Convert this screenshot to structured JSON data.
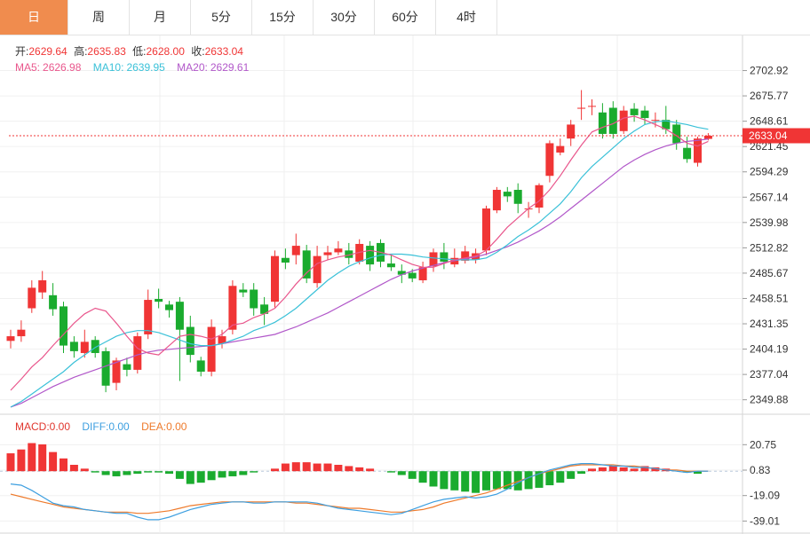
{
  "tabs": [
    "日",
    "周",
    "月",
    "5分",
    "15分",
    "30分",
    "60分",
    "4时"
  ],
  "active_tab": 0,
  "info": {
    "open_label": "开:",
    "open": "2629.64",
    "high_label": "高:",
    "high": "2635.83",
    "low_label": "低:",
    "low": "2628.00",
    "close_label": "收:",
    "close": "2633.04"
  },
  "ma_legend": {
    "ma5_label": "MA5:",
    "ma5": "2626.98",
    "ma10_label": "MA10:",
    "ma10": "2639.95",
    "ma20_label": "MA20:",
    "ma20": "2629.61"
  },
  "macd_legend": {
    "macd_label": "MACD:",
    "macd": "0.00",
    "diff_label": "DIFF:",
    "diff": "0.00",
    "dea_label": "DEA:",
    "dea": "0.00"
  },
  "colors": {
    "up": "#f03535",
    "down": "#1aab2e",
    "ma5": "#e9568c",
    "ma10": "#3ac1d8",
    "ma20": "#b157c9",
    "diff": "#3d9fe0",
    "dea": "#ee7a2b",
    "tab_active": "#f08c4e"
  },
  "chart_data": {
    "type": "candlestick",
    "price_axis": {
      "ticks": [
        2702.92,
        2675.77,
        2648.61,
        2621.45,
        2594.29,
        2567.14,
        2539.98,
        2512.82,
        2485.67,
        2458.51,
        2431.35,
        2404.19,
        2377.04,
        2349.88
      ],
      "current_price": "2633.04",
      "range": [
        2341,
        2712
      ]
    },
    "macd_axis": {
      "ticks": [
        20.75,
        0.83,
        -19.09,
        -39.01
      ],
      "range": [
        -45,
        30
      ]
    },
    "candles": [
      [
        2413,
        2418,
        2405,
        2425
      ],
      [
        2418,
        2425,
        2412,
        2435
      ],
      [
        2448,
        2470,
        2443,
        2478
      ],
      [
        2465,
        2478,
        2458,
        2488
      ],
      [
        2462,
        2447,
        2440,
        2475
      ],
      [
        2450,
        2408,
        2400,
        2455
      ],
      [
        2412,
        2402,
        2395,
        2418
      ],
      [
        2400,
        2412,
        2395,
        2425
      ],
      [
        2414,
        2400,
        2395,
        2418
      ],
      [
        2402,
        2365,
        2358,
        2406
      ],
      [
        2368,
        2392,
        2360,
        2395
      ],
      [
        2388,
        2382,
        2375,
        2395
      ],
      [
        2382,
        2418,
        2378,
        2422
      ],
      [
        2420,
        2457,
        2415,
        2468
      ],
      [
        2458,
        2455,
        2448,
        2469
      ],
      [
        2452,
        2446,
        2438,
        2456
      ],
      [
        2455,
        2425,
        2370,
        2460
      ],
      [
        2428,
        2398,
        2390,
        2440
      ],
      [
        2392,
        2380,
        2375,
        2396
      ],
      [
        2380,
        2428,
        2375,
        2436
      ],
      [
        2410,
        2418,
        2405,
        2425
      ],
      [
        2425,
        2472,
        2420,
        2478
      ],
      [
        2468,
        2465,
        2460,
        2475
      ],
      [
        2468,
        2448,
        2440,
        2475
      ],
      [
        2452,
        2442,
        2430,
        2460
      ],
      [
        2455,
        2504,
        2449,
        2510
      ],
      [
        2502,
        2497,
        2490,
        2512
      ],
      [
        2505,
        2515,
        2495,
        2528
      ],
      [
        2510,
        2480,
        2475,
        2516
      ],
      [
        2475,
        2504,
        2470,
        2515
      ],
      [
        2505,
        2508,
        2500,
        2515
      ],
      [
        2508,
        2512,
        2505,
        2520
      ],
      [
        2510,
        2502,
        2495,
        2518
      ],
      [
        2498,
        2517,
        2495,
        2522
      ],
      [
        2515,
        2495,
        2488,
        2520
      ],
      [
        2518,
        2498,
        2492,
        2522
      ],
      [
        2496,
        2492,
        2488,
        2505
      ],
      [
        2488,
        2484,
        2475,
        2495
      ],
      [
        2486,
        2480,
        2476,
        2490
      ],
      [
        2478,
        2492,
        2475,
        2498
      ],
      [
        2493,
        2508,
        2487,
        2512
      ],
      [
        2508,
        2498,
        2490,
        2518
      ],
      [
        2495,
        2502,
        2492,
        2512
      ],
      [
        2499,
        2509,
        2496,
        2515
      ],
      [
        2500,
        2507,
        2496,
        2512
      ],
      [
        2510,
        2555,
        2505,
        2558
      ],
      [
        2553,
        2575,
        2550,
        2578
      ],
      [
        2573,
        2568,
        2562,
        2578
      ],
      [
        2575,
        2560,
        2550,
        2582
      ],
      [
        2555,
        2555,
        2545,
        2562
      ],
      [
        2556,
        2580,
        2550,
        2582
      ],
      [
        2590,
        2625,
        2583,
        2628
      ],
      [
        2615,
        2622,
        2612,
        2630
      ],
      [
        2630,
        2645,
        2622,
        2650
      ],
      [
        2662,
        2663,
        2650,
        2682
      ],
      [
        2665,
        2665,
        2655,
        2672
      ],
      [
        2658,
        2635,
        2630,
        2668
      ],
      [
        2663,
        2635,
        2630,
        2670
      ],
      [
        2638,
        2660,
        2635,
        2665
      ],
      [
        2662,
        2655,
        2648,
        2668
      ],
      [
        2660,
        2652,
        2645,
        2665
      ],
      [
        2650,
        2650,
        2642,
        2658
      ],
      [
        2650,
        2640,
        2635,
        2665
      ],
      [
        2645,
        2625,
        2618,
        2650
      ],
      [
        2620,
        2608,
        2604,
        2632
      ],
      [
        2604,
        2630,
        2600,
        2632
      ],
      [
        2629.64,
        2633.04,
        2628.0,
        2635.83
      ]
    ],
    "ma5": [
      2360,
      2372,
      2385,
      2395,
      2408,
      2420,
      2432,
      2442,
      2448,
      2445,
      2432,
      2418,
      2405,
      2400,
      2398,
      2408,
      2418,
      2420,
      2418,
      2415,
      2420,
      2430,
      2432,
      2438,
      2442,
      2448,
      2460,
      2474,
      2486,
      2496,
      2500,
      2503,
      2505,
      2508,
      2510,
      2508,
      2505,
      2500,
      2495,
      2492,
      2492,
      2496,
      2500,
      2502,
      2504,
      2510,
      2522,
      2535,
      2545,
      2555,
      2563,
      2575,
      2590,
      2607,
      2623,
      2637,
      2642,
      2646,
      2652,
      2654,
      2650,
      2645,
      2640,
      2633,
      2625,
      2622,
      2626.98
    ],
    "ma10": [
      2342,
      2348,
      2356,
      2364,
      2372,
      2380,
      2390,
      2398,
      2406,
      2412,
      2418,
      2422,
      2424,
      2424,
      2422,
      2418,
      2414,
      2410,
      2408,
      2408,
      2410,
      2414,
      2418,
      2424,
      2428,
      2433,
      2440,
      2448,
      2458,
      2468,
      2478,
      2486,
      2493,
      2498,
      2502,
      2505,
      2506,
      2506,
      2505,
      2503,
      2502,
      2501,
      2500,
      2500,
      2500,
      2502,
      2508,
      2516,
      2525,
      2532,
      2540,
      2550,
      2560,
      2573,
      2588,
      2600,
      2610,
      2620,
      2630,
      2638,
      2645,
      2648,
      2649,
      2647,
      2645,
      2642,
      2639.95
    ],
    "ma20": [
      2342,
      2346,
      2352,
      2358,
      2364,
      2369,
      2374,
      2378,
      2382,
      2386,
      2390,
      2394,
      2398,
      2401,
      2403,
      2404,
      2405,
      2406,
      2407,
      2408,
      2410,
      2412,
      2414,
      2416,
      2418,
      2420,
      2424,
      2428,
      2433,
      2438,
      2443,
      2449,
      2455,
      2461,
      2467,
      2473,
      2479,
      2484,
      2488,
      2491,
      2494,
      2497,
      2499,
      2501,
      2503,
      2506,
      2510,
      2514,
      2519,
      2525,
      2531,
      2538,
      2546,
      2555,
      2564,
      2573,
      2582,
      2591,
      2600,
      2607,
      2613,
      2618,
      2622,
      2625,
      2627,
      2628,
      2629.61
    ],
    "macd": [
      14,
      17,
      22,
      21,
      15,
      10,
      5,
      2,
      -1,
      -3,
      -4,
      -3,
      -2,
      -1,
      -1,
      -2,
      -6,
      -10,
      -9,
      -7,
      -5,
      -4,
      -3,
      -1,
      0,
      2,
      6,
      7,
      7,
      6,
      6,
      5,
      4,
      3,
      2,
      0,
      -1,
      -3,
      -6,
      -9,
      -12,
      -14,
      -15,
      -16,
      -17,
      -15,
      -14,
      -14,
      -15,
      -14,
      -13,
      -11,
      -9,
      -6,
      -2,
      2,
      3,
      4,
      3,
      2,
      4,
      3,
      2,
      0,
      -1,
      -2,
      0
    ],
    "diff": [
      -10,
      -11,
      -15,
      -20,
      -25,
      -27,
      -28,
      -30,
      -31,
      -32,
      -33,
      -33,
      -36,
      -38,
      -38,
      -36,
      -33,
      -30,
      -28,
      -26,
      -25,
      -24,
      -24,
      -25,
      -25,
      -24,
      -24,
      -24,
      -24,
      -25,
      -27,
      -29,
      -30,
      -31,
      -32,
      -33,
      -34,
      -33,
      -30,
      -27,
      -24,
      -22,
      -21,
      -20,
      -21,
      -20,
      -18,
      -14,
      -9,
      -5,
      -2,
      1,
      3,
      5,
      6,
      6,
      5,
      4,
      4,
      3,
      3,
      2,
      1,
      0,
      -1,
      0,
      0
    ],
    "dea": [
      -18,
      -20,
      -22,
      -24,
      -26,
      -28,
      -29,
      -30,
      -31,
      -32,
      -32,
      -32,
      -33,
      -33,
      -32,
      -31,
      -29,
      -27,
      -26,
      -25,
      -24,
      -24,
      -24,
      -24,
      -24,
      -24,
      -24,
      -25,
      -25,
      -26,
      -27,
      -28,
      -29,
      -29,
      -30,
      -31,
      -32,
      -32,
      -31,
      -30,
      -28,
      -25,
      -23,
      -21,
      -19,
      -17,
      -14,
      -11,
      -8,
      -5,
      -2,
      0,
      2,
      4,
      5,
      5,
      5,
      5,
      4,
      4,
      3,
      2,
      1,
      1,
      0,
      0,
      0
    ]
  }
}
